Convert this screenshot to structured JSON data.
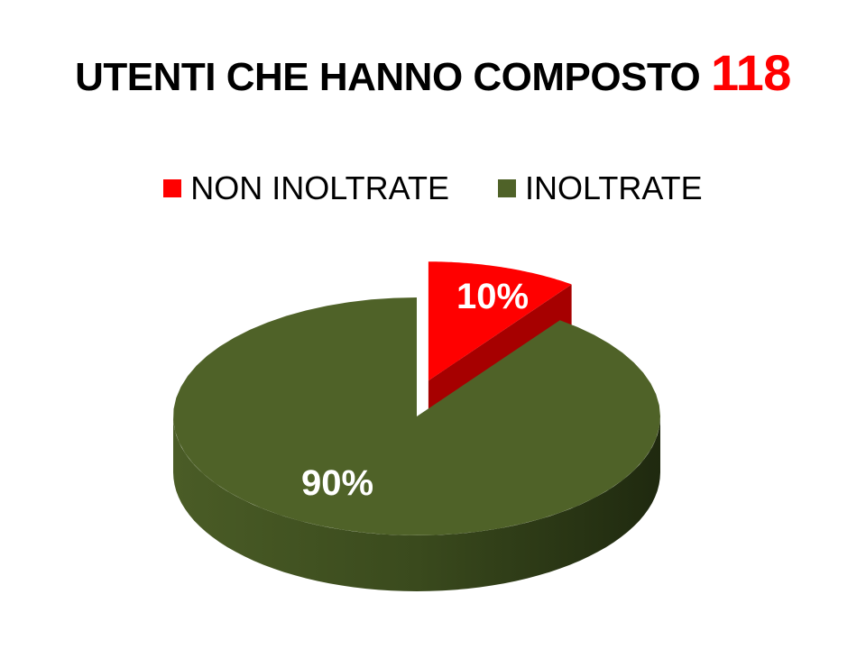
{
  "chart_data": {
    "type": "pie",
    "title": "UTENTI CHE HANNO COMPOSTO",
    "title_highlight": "118",
    "title_highlight_color": "#ff0000",
    "style": "3d-exploded",
    "legend_position": "top",
    "slices": [
      {
        "name": "NON INOLTRATE",
        "value": 10,
        "label": "10%",
        "color": "#ff0000",
        "exploded": true
      },
      {
        "name": "INOLTRATE",
        "value": 90,
        "label": "90%",
        "color": "#4f6228",
        "exploded": false
      }
    ]
  }
}
